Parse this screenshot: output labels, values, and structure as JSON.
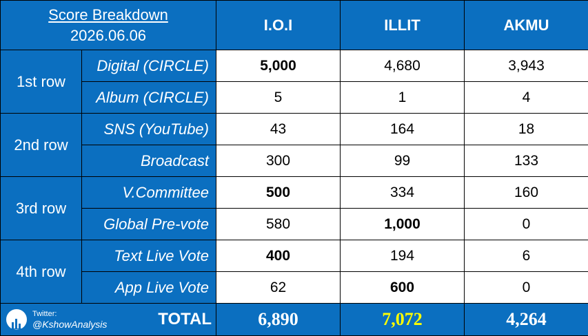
{
  "header": {
    "title": "Score Breakdown",
    "date": "2026.06.06",
    "teams": [
      "I.O.I",
      "ILLIT",
      "AKMU"
    ]
  },
  "rows": [
    {
      "group": "1st row",
      "label": "Digital (CIRCLE)",
      "values": [
        "5,000",
        "4,680",
        "3,943"
      ],
      "bold": [
        true,
        false,
        false
      ]
    },
    {
      "group": "",
      "label": "Album (CIRCLE)",
      "values": [
        "5",
        "1",
        "4"
      ],
      "bold": [
        false,
        false,
        false
      ]
    },
    {
      "group": "2nd row",
      "label": "SNS (YouTube)",
      "values": [
        "43",
        "164",
        "18"
      ],
      "bold": [
        false,
        false,
        false
      ]
    },
    {
      "group": "",
      "label": "Broadcast",
      "values": [
        "300",
        "99",
        "133"
      ],
      "bold": [
        false,
        false,
        false
      ]
    },
    {
      "group": "3rd row",
      "label": "V.Committee",
      "values": [
        "500",
        "334",
        "160"
      ],
      "bold": [
        true,
        false,
        false
      ]
    },
    {
      "group": "",
      "label": "Global Pre-vote",
      "values": [
        "580",
        "1,000",
        "0"
      ],
      "bold": [
        false,
        true,
        false
      ]
    },
    {
      "group": "4th row",
      "label": "Text Live Vote",
      "values": [
        "400",
        "194",
        "6"
      ],
      "bold": [
        true,
        false,
        false
      ]
    },
    {
      "group": "",
      "label": "App Live Vote",
      "values": [
        "62",
        "600",
        "0"
      ],
      "bold": [
        false,
        true,
        false
      ]
    }
  ],
  "total": {
    "label": "TOTAL",
    "values": [
      "6,890",
      "7,072",
      "4,264"
    ],
    "winner_color": "#ffff00"
  },
  "credit": {
    "platform": "Twitter:",
    "handle": "@KshowAnalysis",
    "icon": "bar-chart-icon"
  },
  "colors": {
    "header_blue": "#0b6fc0",
    "highlight": "#ffff00"
  }
}
